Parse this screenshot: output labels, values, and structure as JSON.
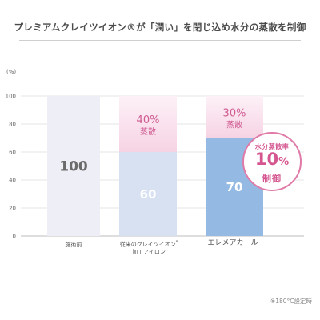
{
  "title": "プレミアムクレイツイオン®が「潤い」を閉じ込め水分の蒸散を制御",
  "footnote": "※180°C設定時",
  "badge": {
    "line1": "水分蒸散率",
    "value": "10",
    "percent_sign": "%",
    "line3": "制御"
  },
  "colors": {
    "before_bar": "#eeeef6",
    "conventional_bar": "#d7e1f2",
    "elemea_bar": "#94b9e2",
    "evaporation": "#f6d3e4",
    "evaporation_text": "#d05b92",
    "badge": "#d4558f"
  },
  "chart_data": {
    "type": "bar",
    "stacked": true,
    "title": "プレミアムクレイツイオン®が「潤い」を閉じ込め水分の蒸散を制御",
    "y_unit": "(%)",
    "ylim": [
      0,
      100
    ],
    "yticks": [
      "0",
      "20",
      "40",
      "60",
      "80",
      "100"
    ],
    "categories": [
      {
        "line1": "施術前",
        "line2": "",
        "sup": ""
      },
      {
        "line1": "従来のクレイツイオン",
        "sup": "*",
        "line2": "加工アイロン"
      },
      {
        "line1": "エレメアカール",
        "sup": "",
        "line2": ""
      }
    ],
    "series": [
      {
        "values": [
          100,
          60,
          70
        ],
        "labels": [
          "100",
          "60",
          "70"
        ]
      },
      {
        "values": [
          0,
          40,
          30
        ],
        "labels": [
          "",
          "40%",
          "30%"
        ],
        "sublabels": [
          "",
          "蒸散",
          "蒸散"
        ]
      }
    ],
    "grid": true
  }
}
